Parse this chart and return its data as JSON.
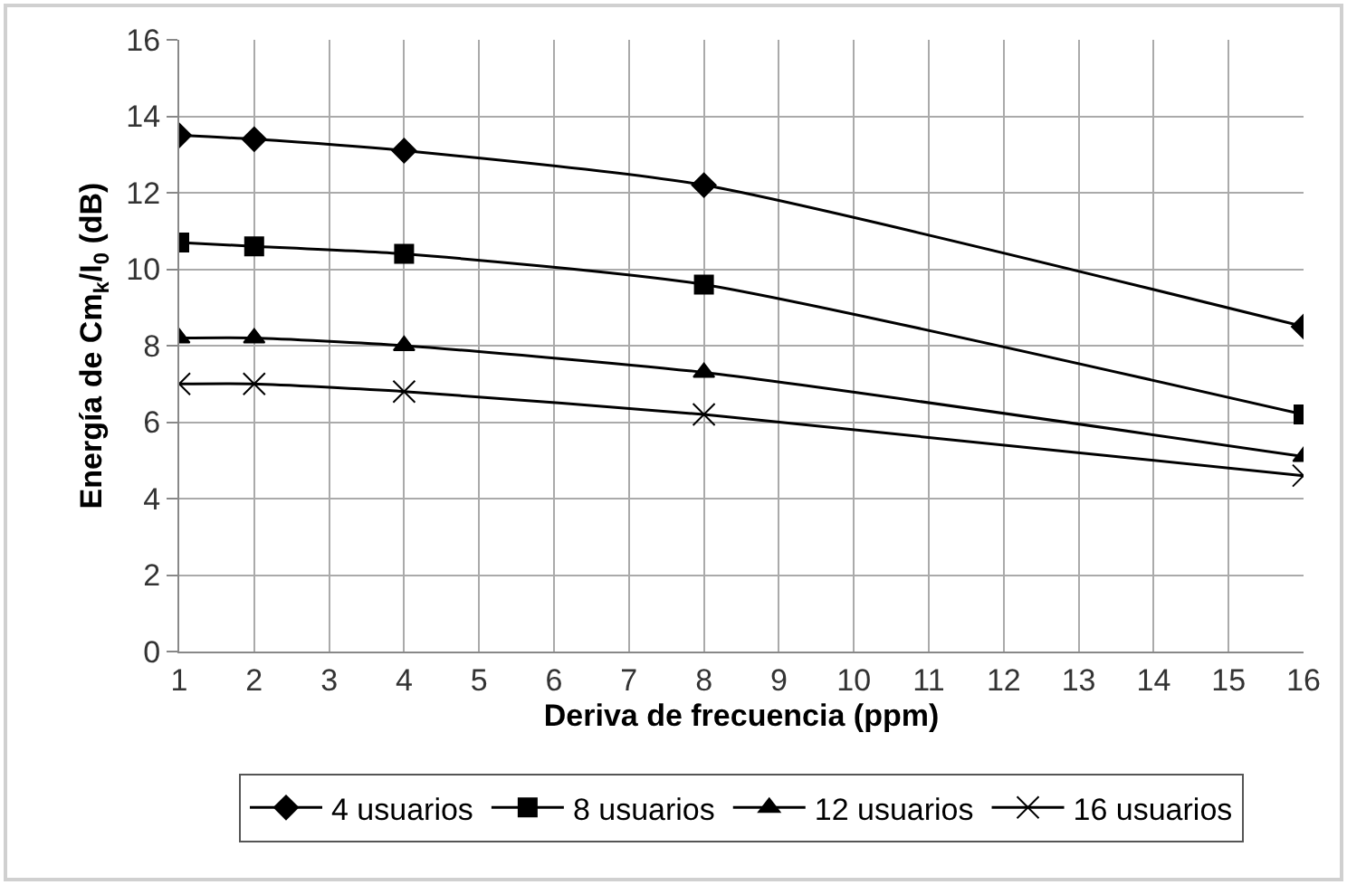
{
  "chart_data": {
    "type": "line",
    "xlabel": "Deriva de frecuencia (ppm)",
    "ylabel": "Energía de Cm$_{k}$/I$_{0}$ (dB)",
    "x": [
      1,
      2,
      4,
      8,
      16
    ],
    "series": [
      {
        "name": "4 usuarios",
        "color": "#000000",
        "marker": "diamond",
        "values": [
          13.5,
          13.4,
          13.1,
          12.2,
          8.5
        ]
      },
      {
        "name": "8 usuarios",
        "color": "#000000",
        "marker": "square",
        "values": [
          10.7,
          10.6,
          10.4,
          9.6,
          6.2
        ]
      },
      {
        "name": "12 usuarios",
        "color": "#000000",
        "marker": "triangle",
        "values": [
          8.2,
          8.2,
          8.0,
          7.3,
          5.1
        ]
      },
      {
        "name": "16 usuarios",
        "color": "#000000",
        "marker": "cross",
        "values": [
          7.0,
          7.0,
          6.8,
          6.2,
          4.6
        ]
      }
    ],
    "xlim": [
      1,
      16
    ],
    "xticks": [
      1,
      2,
      3,
      4,
      5,
      6,
      7,
      8,
      9,
      10,
      11,
      12,
      13,
      14,
      15,
      16
    ],
    "ylim": [
      0,
      16
    ],
    "yticks": [
      0,
      2,
      4,
      6,
      8,
      10,
      12,
      14,
      16
    ],
    "grid": true,
    "legend": "bottom",
    "line_style": "solid"
  }
}
